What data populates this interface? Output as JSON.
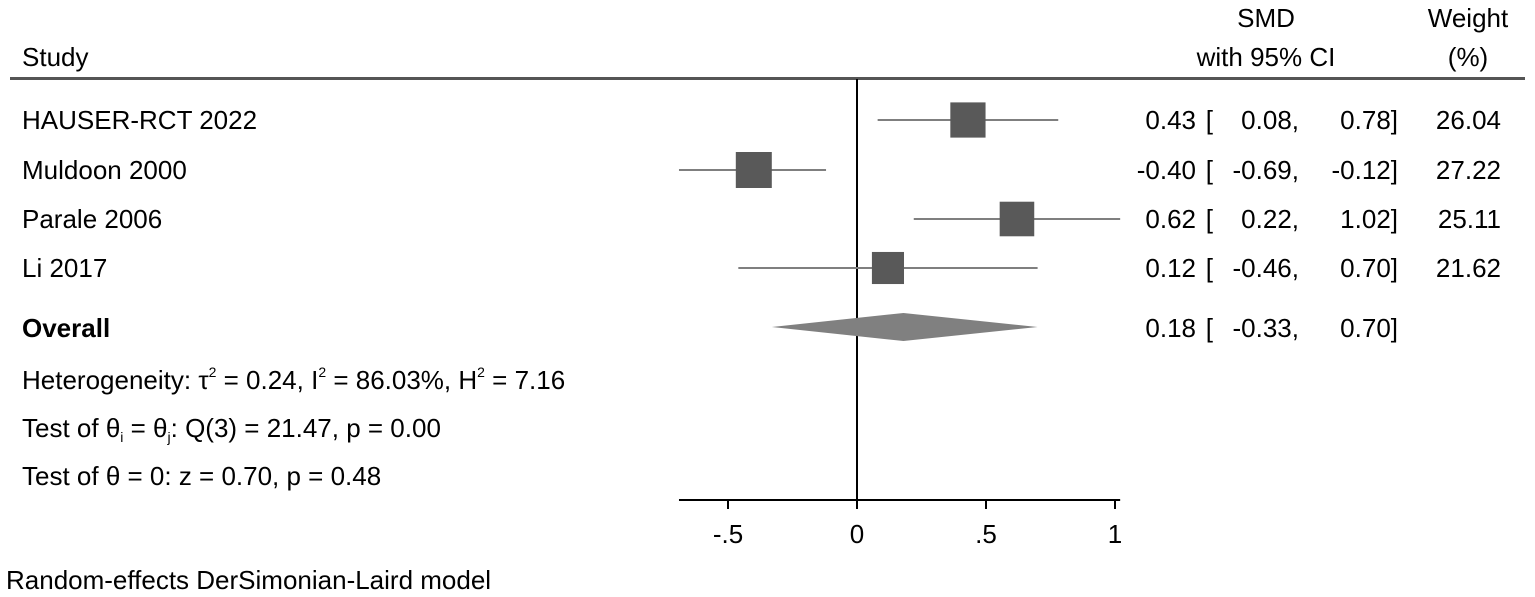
{
  "chart_data": {
    "type": "forest",
    "columns": {
      "study": "Study",
      "effect_line1": "SMD",
      "effect_line2": "with 95% CI",
      "weight_line1": "Weight",
      "weight_line2": "(%)"
    },
    "studies": [
      {
        "name": "HAUSER-RCT 2022",
        "smd": 0.43,
        "lower": 0.08,
        "upper": 0.78,
        "weight": 26.04,
        "smd_text": "0.43",
        "lower_text": "0.08,",
        "upper_text": "0.78]",
        "weight_text": "26.04"
      },
      {
        "name": "Muldoon 2000",
        "smd": -0.4,
        "lower": -0.69,
        "upper": -0.12,
        "weight": 27.22,
        "smd_text": "-0.40",
        "lower_text": "-0.69,",
        "upper_text": "-0.12]",
        "weight_text": "27.22"
      },
      {
        "name": "Parale 2006",
        "smd": 0.62,
        "lower": 0.22,
        "upper": 1.02,
        "weight": 25.11,
        "smd_text": "0.62",
        "lower_text": "0.22,",
        "upper_text": "1.02]",
        "weight_text": "25.11"
      },
      {
        "name": "Li 2017",
        "smd": 0.12,
        "lower": -0.46,
        "upper": 0.7,
        "weight": 21.62,
        "smd_text": "0.12",
        "lower_text": "-0.46,",
        "upper_text": "0.70]",
        "weight_text": "21.62"
      }
    ],
    "overall": {
      "label": "Overall",
      "smd": 0.18,
      "lower": -0.33,
      "upper": 0.7,
      "smd_text": "0.18",
      "lower_text": "-0.33,",
      "upper_text": "0.70]"
    },
    "bracket_open": "[",
    "stats": {
      "heterogeneity_prefix": "Heterogeneity: τ",
      "tau_sup": "2",
      "tau_value": " = 0.24, I",
      "i_sup": "2",
      "i_value": " = 86.03%, H",
      "h_sup": "2",
      "h_value": " = 7.16",
      "test_theta_prefix": "Test of θ",
      "test_theta_i": "i",
      "test_theta_eq": " = θ",
      "test_theta_j": "j",
      "test_theta_rest": ": Q(3) = 21.47, p = 0.00",
      "test_zero": "Test of θ = 0: z = 0.70, p = 0.48"
    },
    "x_axis": {
      "ticks": [
        -0.5,
        0,
        0.5,
        1
      ],
      "tick_labels": [
        "-.5",
        "0",
        ".5",
        "1"
      ],
      "range": [
        -0.69,
        1.02
      ]
    },
    "footnote": "Random-effects DerSimonian-Laird model",
    "colors": {
      "marker": "#595959",
      "ci_line": "#7f7f7f",
      "diamond": "#808080",
      "axis": "#000000",
      "header_rule": "#555555"
    }
  }
}
